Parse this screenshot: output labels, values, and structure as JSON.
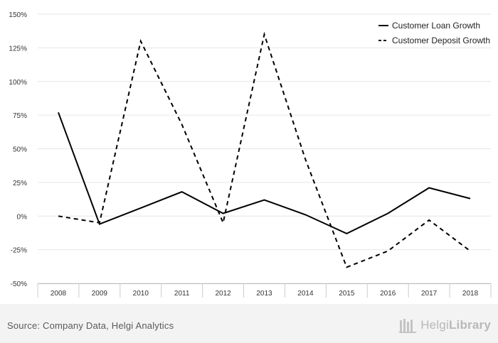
{
  "chart_data": {
    "type": "line",
    "title": "",
    "xlabel": "",
    "ylabel": "",
    "categories": [
      "2008",
      "2009",
      "2010",
      "2011",
      "2012",
      "2013",
      "2014",
      "2015",
      "2016",
      "2017",
      "2018"
    ],
    "ylim": [
      -50,
      150
    ],
    "yticks": [
      -50,
      -25,
      0,
      25,
      50,
      75,
      100,
      125,
      150
    ],
    "ytick_labels": [
      "-50%",
      "-25%",
      "0%",
      "25%",
      "50%",
      "75%",
      "100%",
      "125%",
      "150%"
    ],
    "grid": true,
    "legend_position": "top-right",
    "series": [
      {
        "name": "Customer Loan Growth",
        "style": "solid",
        "color": "#000000",
        "values": [
          77,
          -6,
          6,
          18,
          2,
          12,
          1,
          -13,
          2,
          21,
          13
        ]
      },
      {
        "name": "Customer Deposit Growth",
        "style": "dashed",
        "color": "#000000",
        "values": [
          0,
          -5,
          130,
          68,
          -5,
          135,
          42,
          -38,
          -26,
          -3,
          -26
        ]
      }
    ]
  },
  "footer": {
    "source": "Source: Company Data, Helgi Analytics",
    "logo_light": "Helgi",
    "logo_bold": "Library"
  }
}
